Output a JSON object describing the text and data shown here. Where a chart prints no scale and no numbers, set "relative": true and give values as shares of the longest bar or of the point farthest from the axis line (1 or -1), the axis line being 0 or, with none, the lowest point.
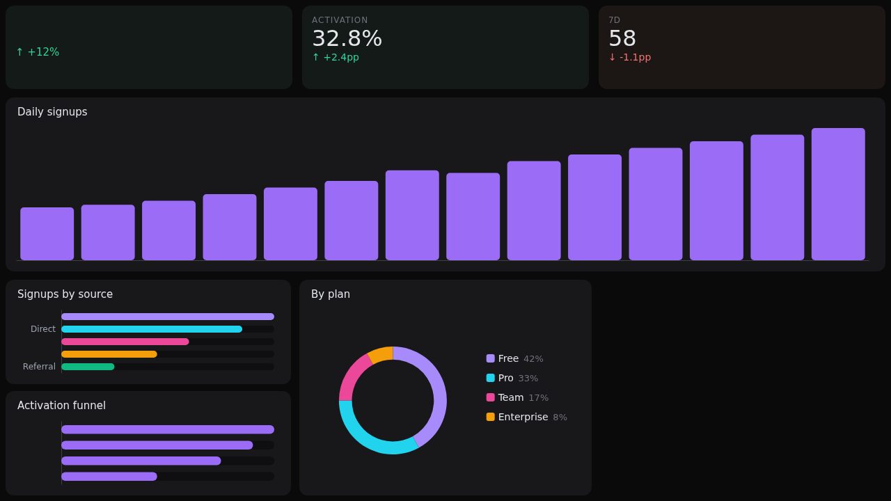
{
  "chart_data": [
    {
      "type": "other",
      "annotations": [
        "↑ +12%",
        "ACTIVATION",
        "32.8%",
        "↑ +2.4pp",
        "7D",
        "58",
        "↓ -1.1pp"
      ]
    },
    {
      "type": "bar",
      "title": "Daily signups",
      "relative": true,
      "categories": [
        null,
        null,
        null,
        null,
        null,
        null,
        null,
        null,
        null,
        null,
        null,
        null,
        null,
        null
      ],
      "values": [
        0.4,
        0.42,
        0.45,
        0.5,
        0.55,
        0.6,
        0.68,
        0.66,
        0.75,
        0.8,
        0.85,
        0.9,
        0.95,
        1
      ],
      "color": "#9b6cf5"
    },
    {
      "type": "bar",
      "title": "Signups by source",
      "orientation": "horizontal",
      "relative": true,
      "categories": [
        null,
        "Direct",
        null,
        null,
        "Referral"
      ],
      "values": [
        1,
        0.85,
        0.6,
        0.45,
        0.25
      ],
      "colors": [
        "#a78bfa",
        "#22d3ee",
        "#ec4899",
        "#f59e0b",
        "#10b981"
      ]
    },
    {
      "type": "donut",
      "title": "By plan",
      "categories": [
        "Free",
        "Pro",
        "Team",
        "Enterprise"
      ],
      "values": [
        42,
        33,
        17,
        8
      ],
      "value_labels": [
        "42%",
        "33%",
        "17%",
        "8%"
      ],
      "colors": [
        "#a78bfa",
        "#22d3ee",
        "#ec4899",
        "#f59e0b"
      ],
      "legend": "right"
    },
    {
      "type": "bar",
      "title": "Activation funnel",
      "orientation": "horizontal",
      "relative": true,
      "categories": [
        null,
        null,
        null,
        null
      ],
      "values": [
        1,
        0.9,
        0.75,
        0.45
      ],
      "color": "#9b6cf5"
    }
  ]
}
